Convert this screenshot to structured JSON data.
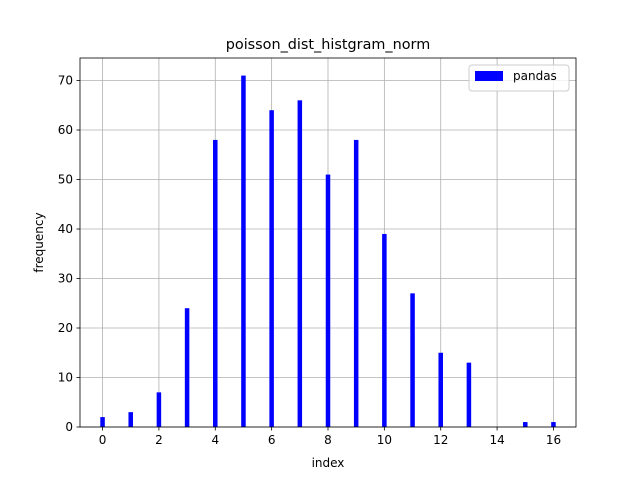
{
  "chart_data": {
    "type": "bar",
    "title": "poisson_dist_histgram_norm",
    "xlabel": "index",
    "ylabel": "frequency",
    "xlim": [
      -0.8,
      16.8
    ],
    "ylim": [
      0,
      74.55
    ],
    "xticks": [
      0,
      2,
      4,
      6,
      8,
      10,
      12,
      14,
      16
    ],
    "yticks": [
      0,
      10,
      20,
      30,
      40,
      50,
      60,
      70
    ],
    "grid": true,
    "legend_position": "top-right",
    "bar_color": "#0000ff",
    "bar_width": 0.16,
    "series": [
      {
        "name": "pandas",
        "x": [
          0,
          1,
          2,
          3,
          4,
          5,
          6,
          7,
          8,
          9,
          10,
          11,
          12,
          13,
          15,
          16
        ],
        "values": [
          2,
          3,
          7,
          24,
          58,
          71,
          64,
          66,
          51,
          58,
          39,
          27,
          15,
          13,
          1,
          1
        ]
      }
    ]
  }
}
